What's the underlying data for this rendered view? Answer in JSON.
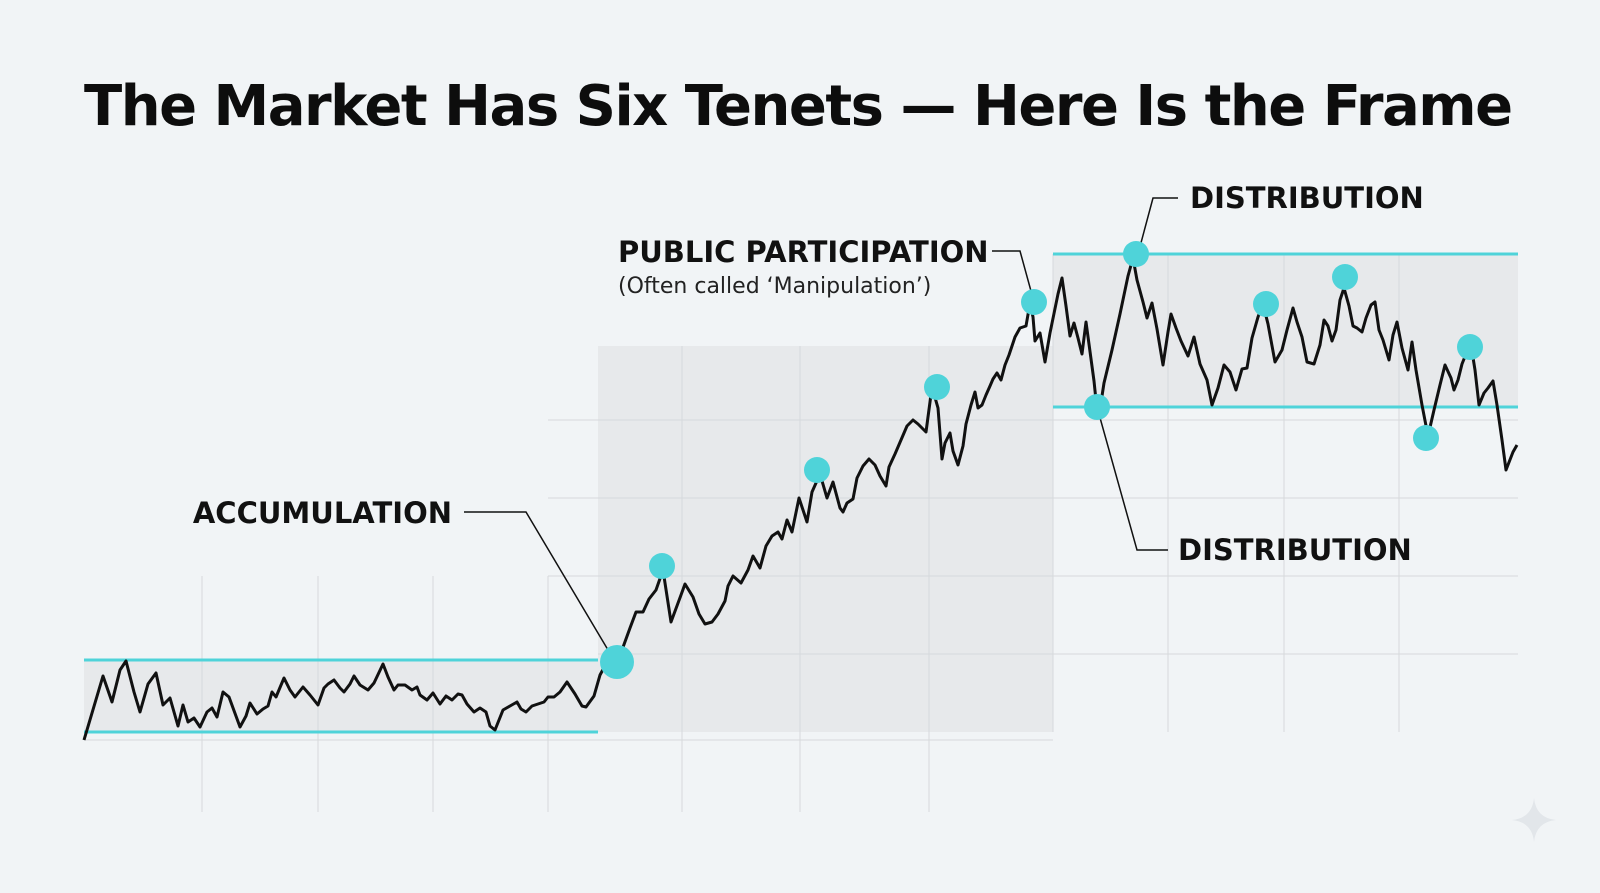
{
  "title": "The Market Has Six Tenets — Here Is the Frame",
  "labels": {
    "accumulation": "ACCUMULATION",
    "public_participation": "PUBLIC PARTICIPATION",
    "public_participation_note": "(Often called ‘Manipulation’)",
    "distribution_top": "DISTRIBUTION",
    "distribution_bottom": "DISTRIBUTION"
  },
  "colors": {
    "background": "#f1f4f6",
    "range_line": "#4fd3d9",
    "marker": "#4fd3d9",
    "price_line": "#111111",
    "shaded_zone": "#e7e9eb",
    "grid": "#d6d9dc"
  }
}
